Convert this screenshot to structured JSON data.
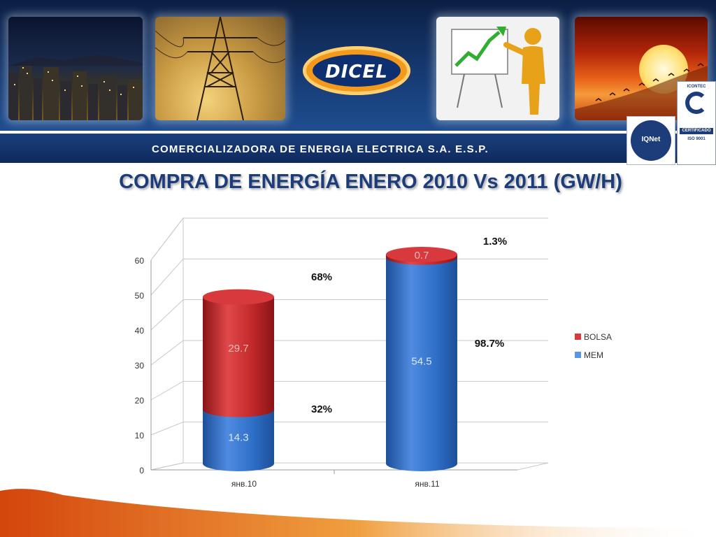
{
  "header": {
    "brand": "DICEL",
    "company_name": "COMERCIALIZADORA DE ENERGIA ELECTRICA S.A. E.S.P.",
    "certifications": {
      "iqnet": "IQNet",
      "icontec_brand": "ICONTEC",
      "icontec_label": "CERTIFICADO",
      "icontec_standard": "ISO 9001"
    }
  },
  "slide_title": "COMPRA DE ENERGÍA ENERO 2010 Vs 2011 (GW/H)",
  "colors": {
    "bolsa": "#c0282a",
    "mem": "#2e6fc8",
    "header_navy": "#0b1f44",
    "title_blue": "#1d3c7a"
  },
  "chart_data": {
    "type": "bar",
    "stacked": true,
    "three_d": true,
    "categories": [
      "янв.10",
      "янв.11"
    ],
    "series": [
      {
        "name": "MEM",
        "values": [
          14.3,
          54.5
        ],
        "percent_labels": [
          "32%",
          "98.7%"
        ]
      },
      {
        "name": "BOLSA",
        "values": [
          29.7,
          0.7
        ],
        "percent_labels": [
          "68%",
          "1.3%"
        ]
      }
    ],
    "ylim": [
      0,
      60
    ],
    "yticks": [
      0,
      10,
      20,
      30,
      40,
      50,
      60
    ],
    "grid": true,
    "legend_position": "right"
  }
}
